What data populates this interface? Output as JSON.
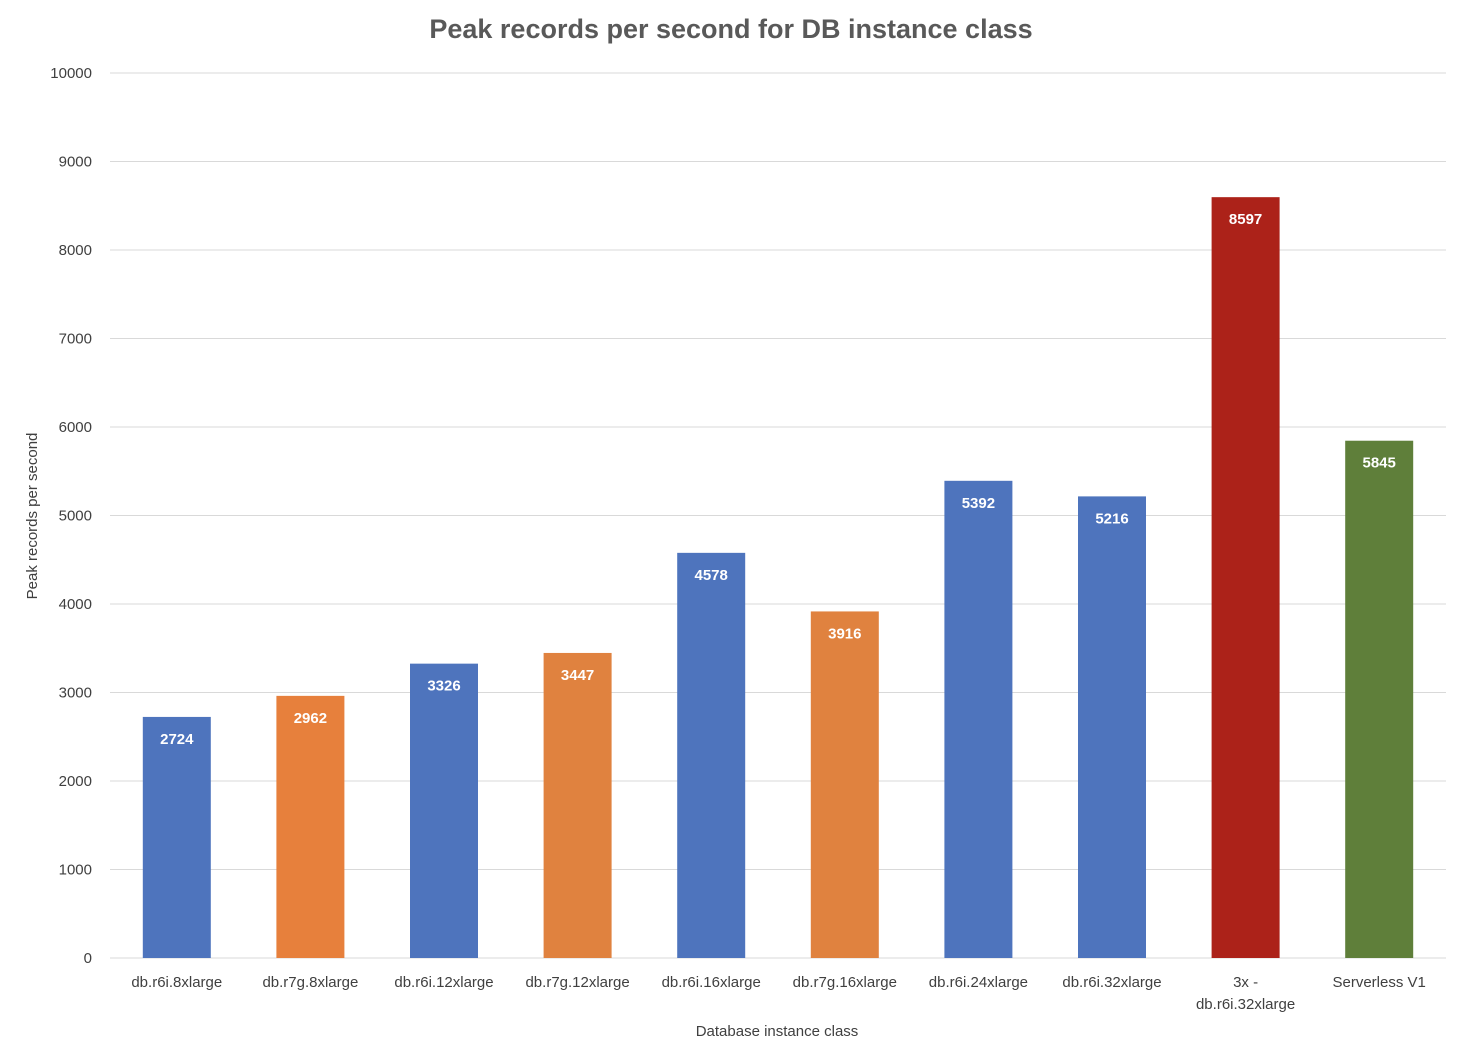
{
  "chart_data": {
    "type": "bar",
    "title": "Peak records per second for DB instance class",
    "xlabel": "Database instance class",
    "ylabel": "Peak records per second",
    "ylim": [
      0,
      10000
    ],
    "yticks": [
      0,
      1000,
      2000,
      3000,
      4000,
      5000,
      6000,
      7000,
      8000,
      9000,
      10000
    ],
    "grid": true,
    "legend": "none",
    "categories": [
      "db.r6i.8xlarge",
      "db.r7g.8xlarge",
      "db.r6i.12xlarge",
      "db.r7g.12xlarge",
      "db.r6i.16xlarge",
      "db.r7g.16xlarge",
      "db.r6i.24xlarge",
      "db.r6i.32xlarge",
      "3x - db.r6i.32xlarge",
      "Serverless V1"
    ],
    "category_lines": [
      [
        "db.r6i.8xlarge"
      ],
      [
        "db.r7g.8xlarge"
      ],
      [
        "db.r6i.12xlarge"
      ],
      [
        "db.r7g.12xlarge"
      ],
      [
        "db.r6i.16xlarge"
      ],
      [
        "db.r7g.16xlarge"
      ],
      [
        "db.r6i.24xlarge"
      ],
      [
        "db.r6i.32xlarge"
      ],
      [
        "3x -",
        "db.r6i.32xlarge"
      ],
      [
        "Serverless V1"
      ]
    ],
    "values": [
      2724,
      2962,
      3326,
      3447,
      4578,
      3916,
      5392,
      5216,
      8597,
      5845
    ],
    "bar_colors": [
      "#4e74bd",
      "#e7803c",
      "#4e74bd",
      "#e0823f",
      "#4e74bd",
      "#e0823f",
      "#4e74bd",
      "#4e74bd",
      "#ac2219",
      "#5f7f3a"
    ],
    "data_labels": [
      "2724",
      "2962",
      "3326",
      "3447",
      "4578",
      "3916",
      "5392",
      "5216",
      "8597",
      "5845"
    ]
  }
}
